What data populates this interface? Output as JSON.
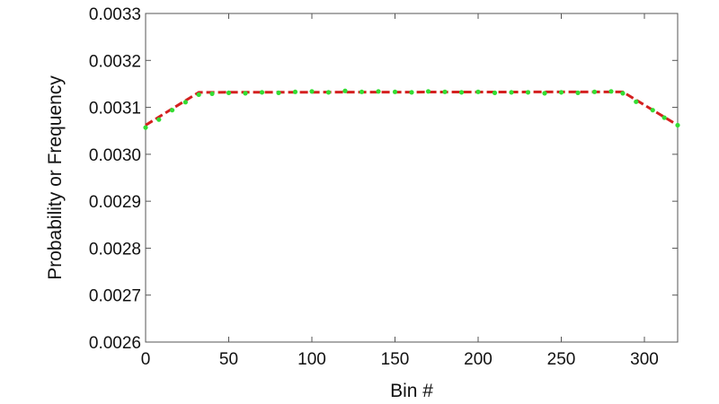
{
  "chart_data": {
    "type": "scatter",
    "xlabel": "Bin #",
    "ylabel": "Probability or Frequency",
    "xlim": [
      0,
      320
    ],
    "ylim": [
      0.0026,
      0.0033
    ],
    "x_ticks": [
      0,
      50,
      100,
      150,
      200,
      250,
      300
    ],
    "x_tick_labels": [
      "0",
      "50",
      "100",
      "150",
      "200",
      "250",
      "300"
    ],
    "y_ticks": [
      0.0026,
      0.0027,
      0.0028,
      0.0029,
      0.003,
      0.0031,
      0.0032,
      0.0033
    ],
    "y_tick_labels": [
      "0.0026",
      "0.0027",
      "0.0028",
      "0.0029",
      "0.0030",
      "0.0031",
      "0.0032",
      "0.0033"
    ],
    "grid": false,
    "series": [
      {
        "kind": "line",
        "style": "dashed",
        "color": "#d42020",
        "x": [
          0,
          32,
          287,
          320
        ],
        "y": [
          0.003062,
          0.003132,
          0.003133,
          0.003062
        ]
      },
      {
        "kind": "points",
        "color": "#33dd33",
        "x": [
          0,
          8,
          16,
          24,
          32,
          40,
          50,
          60,
          70,
          80,
          90,
          100,
          110,
          120,
          130,
          140,
          150,
          160,
          170,
          180,
          190,
          200,
          210,
          220,
          230,
          240,
          250,
          260,
          270,
          280,
          287,
          295,
          305,
          312,
          320
        ],
        "y": [
          0.003057,
          0.003074,
          0.003094,
          0.003111,
          0.003127,
          0.003129,
          0.003131,
          0.00313,
          0.003132,
          0.003131,
          0.003133,
          0.003134,
          0.003132,
          0.003135,
          0.003133,
          0.003134,
          0.003133,
          0.003132,
          0.003134,
          0.003133,
          0.003132,
          0.003133,
          0.003131,
          0.003132,
          0.003132,
          0.00313,
          0.003132,
          0.003131,
          0.003133,
          0.003134,
          0.00313,
          0.003112,
          0.003094,
          0.003078,
          0.003062
        ]
      }
    ]
  }
}
